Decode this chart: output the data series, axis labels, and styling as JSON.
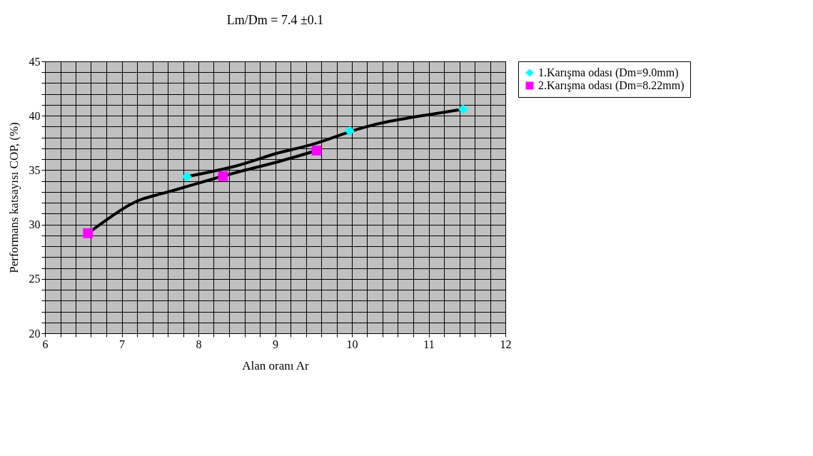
{
  "chart_data": {
    "type": "scatter",
    "title": "Lm/Dm = 7.4 ±0.1",
    "xlabel": "Alan oranı Ar",
    "ylabel": "Performans katsayısı COP, (%)",
    "xlim": [
      6,
      12
    ],
    "xticks": [
      6,
      7,
      8,
      9,
      10,
      11,
      12
    ],
    "ylim": [
      20,
      45
    ],
    "yticks": [
      20,
      25,
      30,
      35,
      40,
      45
    ],
    "grid": true,
    "legend": "right",
    "series": [
      {
        "name": "1.Karışma odası (Dm=9.0mm)",
        "type": "scatter",
        "marker": "diamond",
        "color": "#00ffff",
        "x": [
          7.85,
          9.97,
          11.45
        ],
        "values": [
          34.4,
          38.6,
          40.6
        ]
      },
      {
        "name": "2.Karışma odası (Dm=8.22mm)",
        "type": "scatter",
        "marker": "square",
        "color": "#ff00ff",
        "x": [
          6.56,
          8.32,
          9.54
        ],
        "values": [
          29.2,
          34.45,
          36.8
        ]
      },
      {
        "type": "line",
        "color": "#000000",
        "line_style": "solid",
        "x": [
          7.85,
          8.5,
          9.0,
          9.5,
          10.0,
          10.5,
          11.0,
          11.45
        ],
        "values": [
          34.4,
          35.4,
          36.5,
          37.4,
          38.6,
          39.5,
          40.1,
          40.6
        ]
      },
      {
        "type": "line",
        "color": "#000000",
        "line_style": "solid",
        "x": [
          6.56,
          7.1,
          7.5,
          8.0,
          8.5,
          9.0,
          9.54
        ],
        "values": [
          29.2,
          31.8,
          32.8,
          33.8,
          34.8,
          35.7,
          36.8
        ]
      }
    ]
  }
}
